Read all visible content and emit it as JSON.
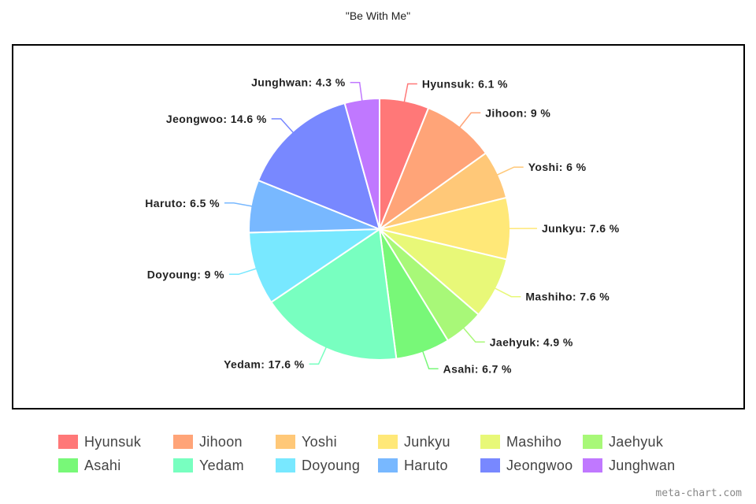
{
  "chart_data": {
    "type": "pie",
    "title": "\"Be With Me\"",
    "categories": [
      "Hyunsuk",
      "Jihoon",
      "Yoshi",
      "Junkyu",
      "Mashiho",
      "Jaehyuk",
      "Asahi",
      "Yedam",
      "Doyoung",
      "Haruto",
      "Jeongwoo",
      "Junghwan"
    ],
    "values": [
      6.1,
      9,
      6,
      7.6,
      7.6,
      4.9,
      6.7,
      17.6,
      9,
      6.5,
      14.6,
      4.3
    ],
    "labels": [
      "Hyunsuk: 6.1 %",
      "Jihoon: 9 %",
      "Yoshi: 6 %",
      "Junkyu: 7.6 %",
      "Mashiho: 7.6 %",
      "Jaehyuk: 4.9 %",
      "Asahi: 6.7 %",
      "Yedam: 17.6 %",
      "Doyoung: 9 %",
      "Haruto: 6.5 %",
      "Jeongwoo: 14.6 %",
      "Junghwan: 4.3 %"
    ],
    "colors": [
      "#ff7878",
      "#ffa478",
      "#ffc878",
      "#ffe878",
      "#e8f878",
      "#a8f878",
      "#78f878",
      "#78ffc0",
      "#78e8ff",
      "#78b8ff",
      "#7888ff",
      "#c078ff"
    ],
    "legend_position": "bottom"
  },
  "watermark": "meta-chart.com"
}
